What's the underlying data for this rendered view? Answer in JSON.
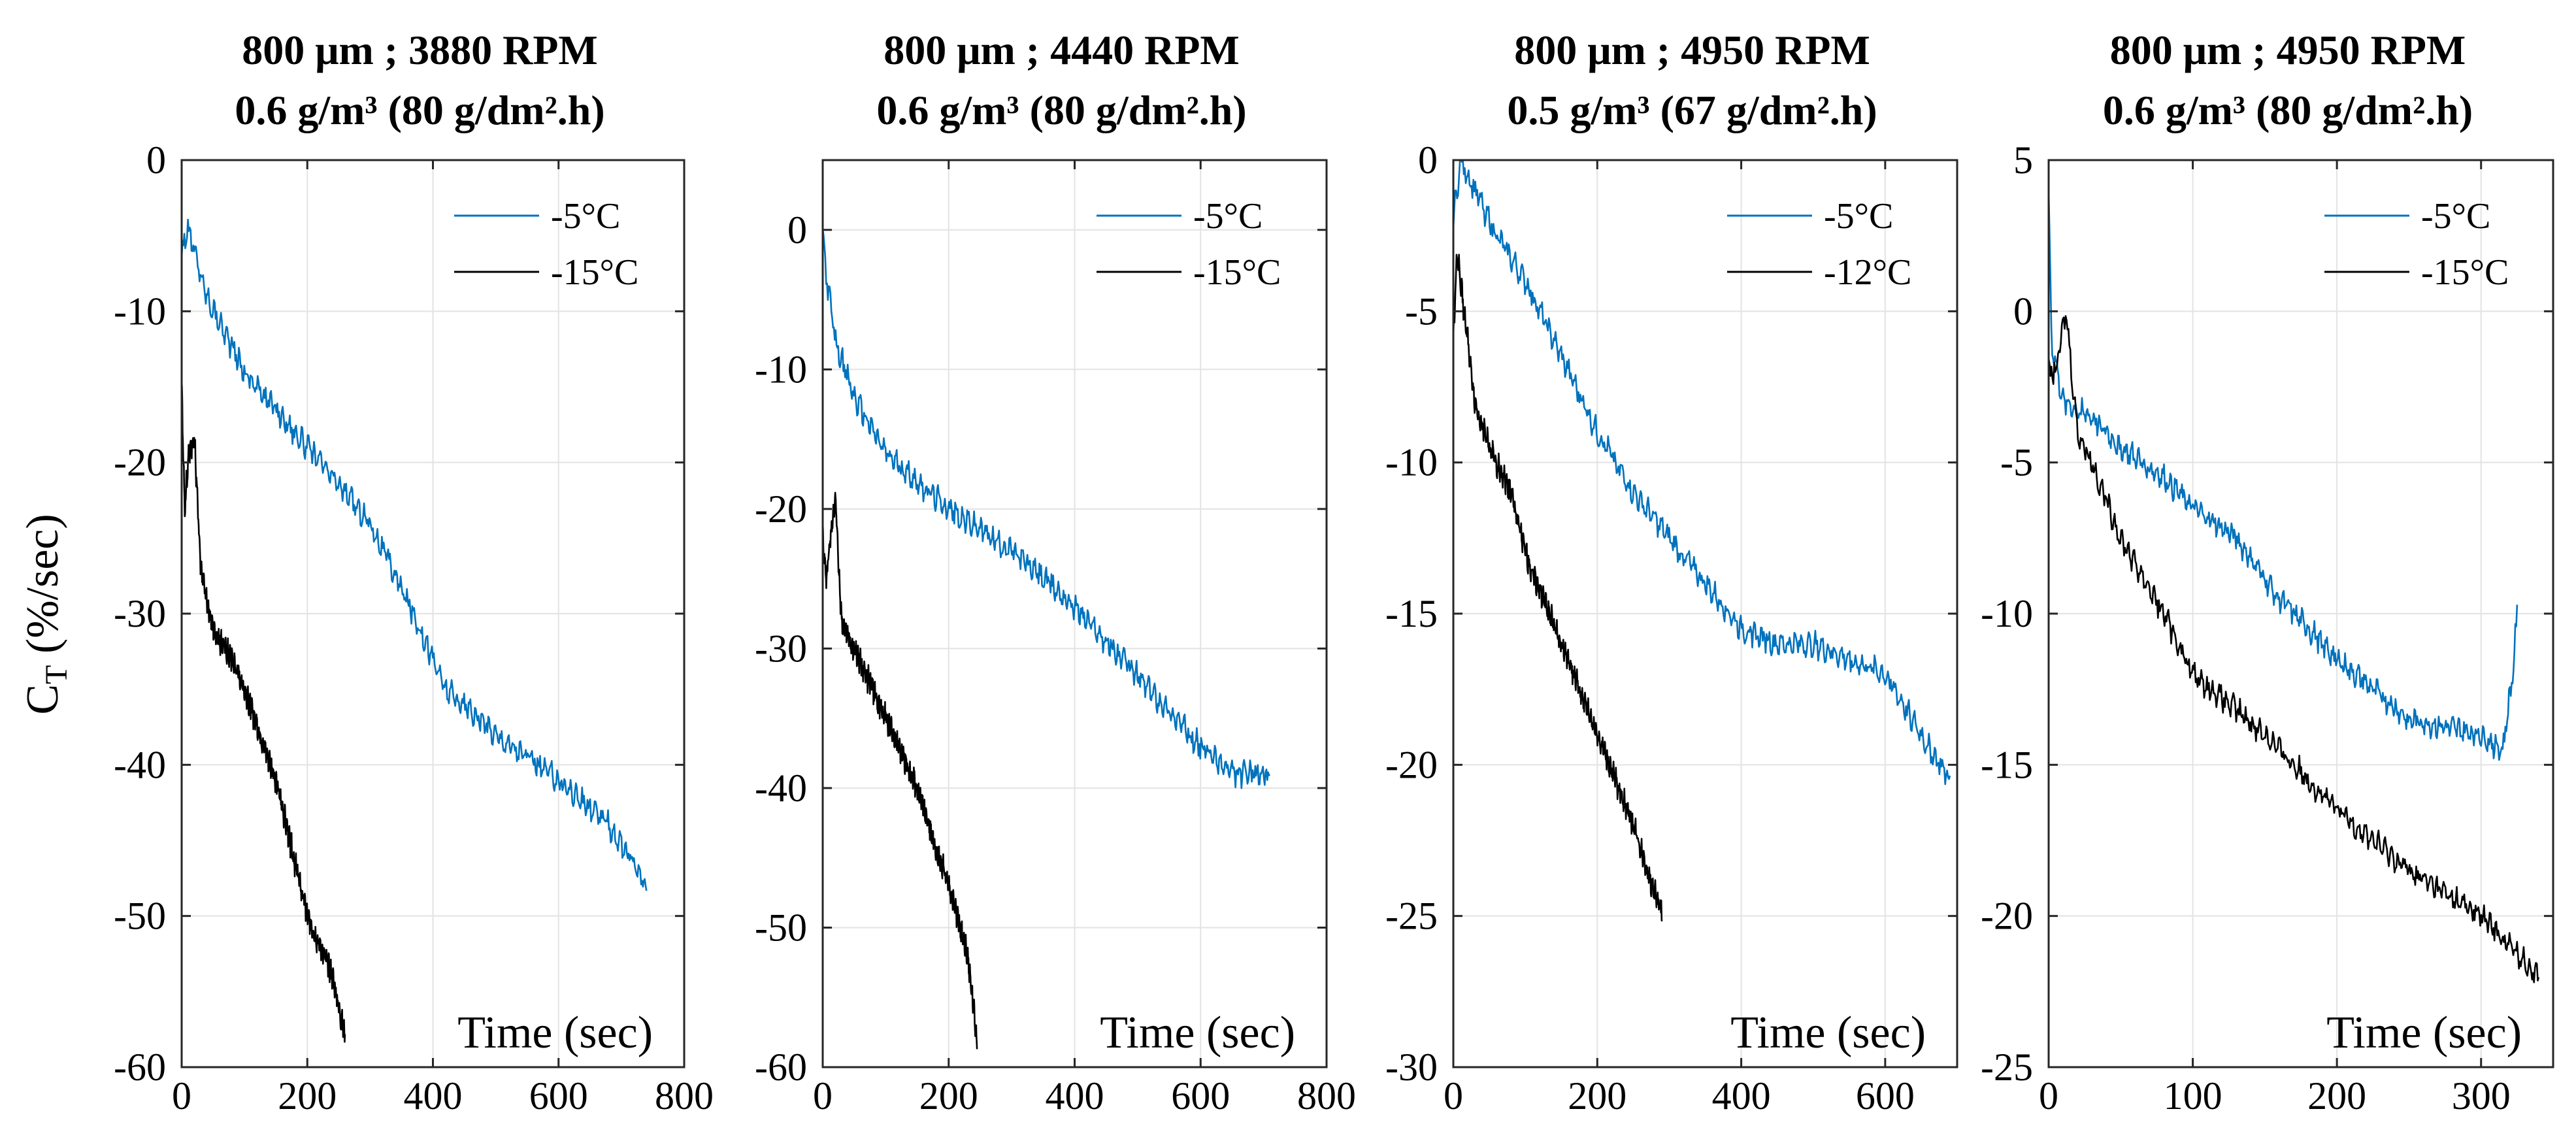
{
  "figure": {
    "ylabel": "C",
    "ylabel_sub": "T",
    "ylabel_unit": " (%/sec)"
  },
  "chart_data": [
    {
      "type": "line",
      "title": [
        "800 μm ; 3880 RPM",
        "0.6 g/m³ (80 g/dm².h)"
      ],
      "xlabel": "Time (sec)",
      "ylabel": "CT (%/sec)",
      "xlim": [
        0,
        800
      ],
      "ylim": [
        -60,
        0
      ],
      "xticks": [
        0,
        200,
        400,
        600,
        800
      ],
      "yticks": [
        -60,
        -50,
        -40,
        -30,
        -20,
        -10,
        0
      ],
      "grid": true,
      "legend": "top-right",
      "series": [
        {
          "name": "-5°C",
          "color": "#0072BD",
          "x": [
            0,
            10,
            40,
            100,
            200,
            300,
            380,
            420,
            500,
            600,
            680,
            740
          ],
          "y": [
            -6,
            -4.5,
            -9,
            -14,
            -19,
            -24,
            -31,
            -35,
            -38,
            -41,
            -44,
            -48
          ]
        },
        {
          "name": "-15°C",
          "color": "#000000",
          "x": [
            0,
            5,
            10,
            20,
            30,
            50,
            80,
            100,
            150,
            200,
            240,
            260
          ],
          "y": [
            -15,
            -23,
            -20,
            -18,
            -27,
            -31,
            -33,
            -35,
            -41,
            -50,
            -54,
            -58
          ]
        }
      ]
    },
    {
      "type": "line",
      "title": [
        "800 μm ; 4440 RPM",
        "0.6 g/m³ (80 g/dm².h)"
      ],
      "xlabel": "Time (sec)",
      "ylabel": "CT (%/sec)",
      "xlim": [
        0,
        800
      ],
      "ylim": [
        -60,
        5
      ],
      "xticks": [
        0,
        200,
        400,
        600,
        800
      ],
      "yticks": [
        -60,
        -50,
        -40,
        -30,
        -20,
        -10,
        0
      ],
      "grid": true,
      "legend": "top-right",
      "series": [
        {
          "name": "-5°C",
          "color": "#0072BD",
          "x": [
            0,
            5,
            20,
            50,
            100,
            200,
            300,
            400,
            500,
            600,
            650,
            710
          ],
          "y": [
            0,
            -3,
            -8,
            -12,
            -16,
            -20,
            -23,
            -27,
            -32,
            -37,
            -39,
            -39
          ]
        },
        {
          "name": "-15°C",
          "color": "#000000",
          "x": [
            0,
            5,
            20,
            30,
            50,
            100,
            150,
            200,
            230,
            245
          ],
          "y": [
            -22,
            -25,
            -19,
            -28,
            -30,
            -35,
            -40,
            -47,
            -52,
            -58
          ]
        }
      ]
    },
    {
      "type": "line",
      "title": [
        "800 μm ; 4950 RPM",
        "0.5 g/m³ (67 g/dm².h)"
      ],
      "xlabel": "Time (sec)",
      "ylabel": "CT (%/sec)",
      "xlim": [
        0,
        700
      ],
      "ylim": [
        -30,
        0
      ],
      "xticks": [
        0,
        200,
        400,
        600
      ],
      "yticks": [
        -30,
        -25,
        -20,
        -15,
        -10,
        -5,
        0
      ],
      "grid": true,
      "legend": "top-right",
      "series": [
        {
          "name": "-5°C",
          "color": "#0072BD",
          "x": [
            0,
            10,
            30,
            60,
            100,
            150,
            200,
            250,
            300,
            350,
            400,
            450,
            500,
            550,
            600,
            650,
            690
          ],
          "y": [
            -2,
            0,
            -1,
            -2.5,
            -4,
            -6.5,
            -9,
            -11,
            -12.5,
            -14,
            -15.5,
            -16,
            -16,
            -16.5,
            -17,
            -19,
            -20.5
          ]
        },
        {
          "name": "-12°C",
          "color": "#000000",
          "x": [
            0,
            5,
            15,
            30,
            50,
            80,
            100,
            150,
            200,
            250,
            290
          ],
          "y": [
            -6,
            -3,
            -5,
            -8,
            -9.5,
            -11,
            -13,
            -16,
            -19,
            -22,
            -25
          ]
        }
      ]
    },
    {
      "type": "line",
      "title": [
        "800 μm ; 4950 RPM",
        "0.6 g/m³ (80 g/dm².h)"
      ],
      "xlabel": "Time (sec)",
      "ylabel": "CT (%/sec)",
      "xlim": [
        0,
        350
      ],
      "ylim": [
        -25,
        5
      ],
      "xticks": [
        0,
        100,
        200,
        300
      ],
      "yticks": [
        -25,
        -20,
        -15,
        -10,
        -5,
        0,
        5
      ],
      "grid": true,
      "legend": "top-right",
      "series": [
        {
          "name": "-5°C",
          "color": "#0072BD",
          "x": [
            0,
            2,
            10,
            30,
            50,
            80,
            100,
            130,
            160,
            200,
            250,
            300,
            315,
            322,
            325
          ],
          "y": [
            4,
            -1,
            -3,
            -3.5,
            -4.5,
            -5.5,
            -6.5,
            -7.5,
            -9.5,
            -11.5,
            -13.5,
            -14,
            -14.5,
            -12,
            -10
          ]
        },
        {
          "name": "-15°C",
          "color": "#000000",
          "x": [
            0,
            5,
            12,
            20,
            30,
            50,
            80,
            100,
            150,
            200,
            250,
            300,
            340
          ],
          "y": [
            -2,
            -2,
            0,
            -4,
            -5,
            -7.5,
            -10,
            -12,
            -14,
            -16.5,
            -18.5,
            -20,
            -22
          ]
        }
      ]
    }
  ]
}
